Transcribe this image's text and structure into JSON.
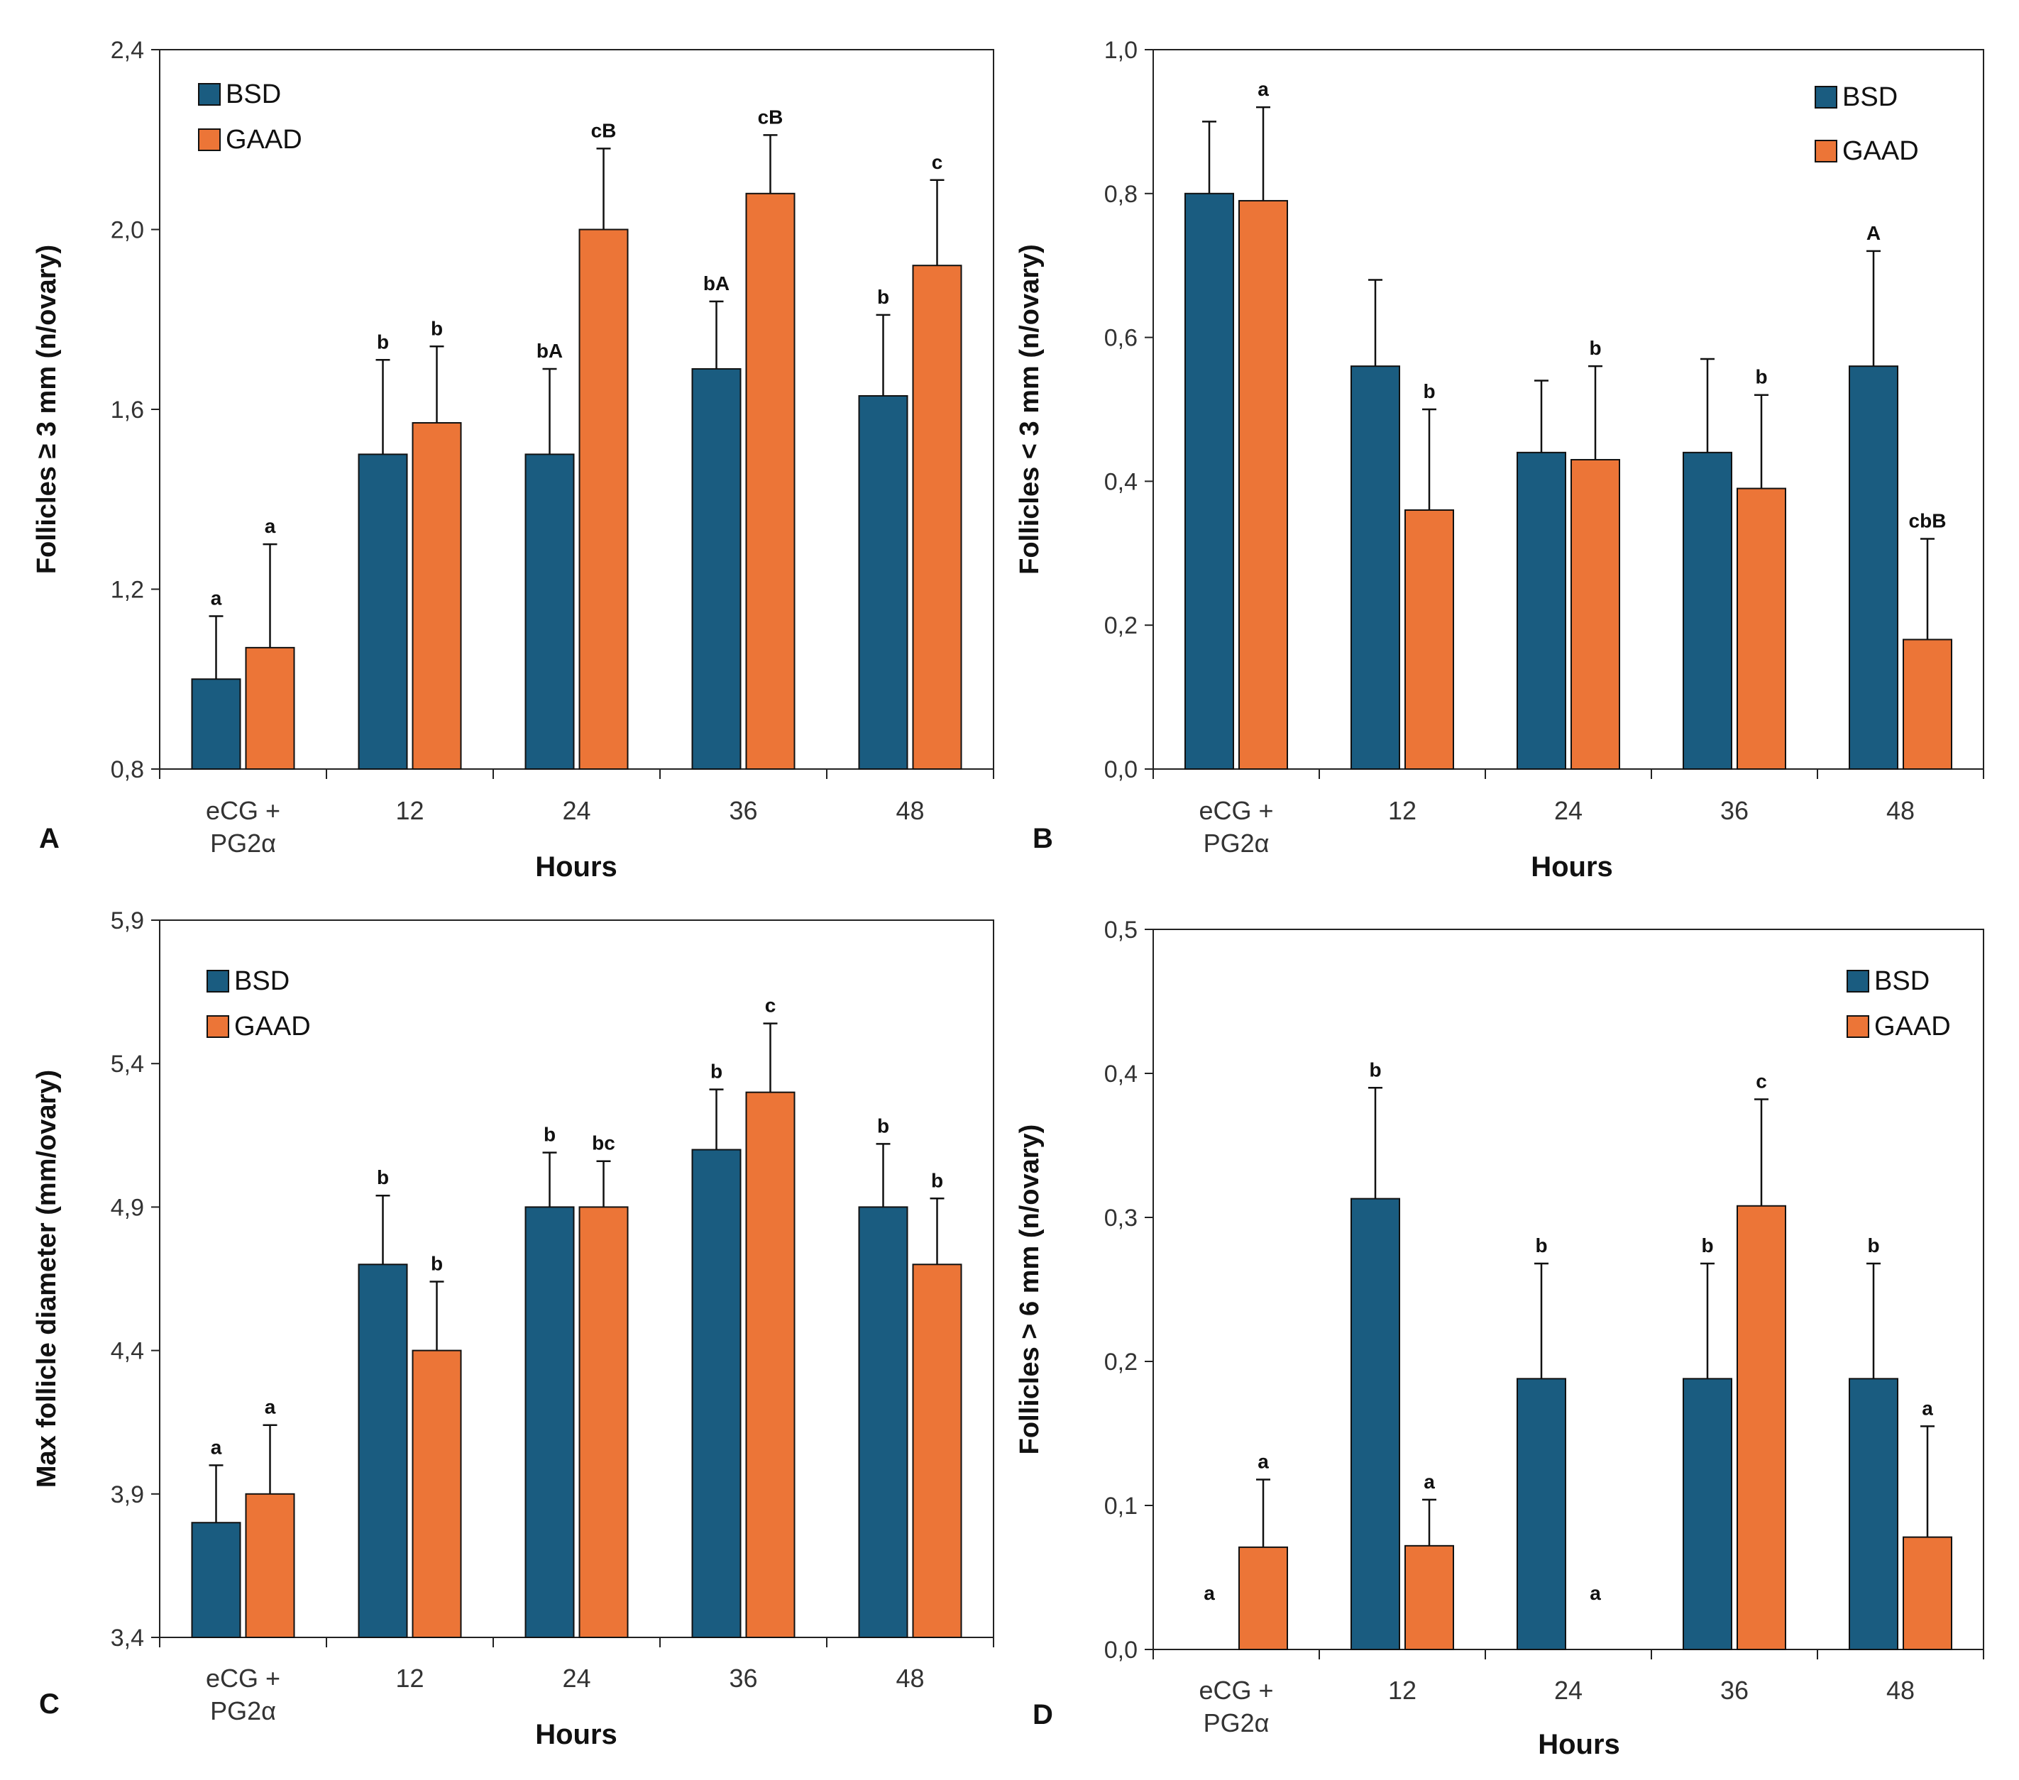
{
  "colors": {
    "bsd": "#1a5c80",
    "gaad": "#ec7537",
    "axis": "#222222",
    "text": "#111111"
  },
  "chart_data": [
    {
      "type": "bar",
      "panel_label": "A",
      "categories": [
        "eCG +|PG2α",
        "12",
        "24",
        "36",
        "48"
      ],
      "xlabel": "Hours",
      "ylabel": "Follicles ≥ 3 mm (n/ovary)",
      "ylim": [
        0.8,
        2.4
      ],
      "yticks": [
        "0,8",
        "1,2",
        "1,6",
        "2,0",
        "2,4"
      ],
      "legend_position": "top-left",
      "series": [
        {
          "name": "BSD",
          "values": [
            1.0,
            1.5,
            1.5,
            1.69,
            1.63
          ],
          "errors": [
            0.14,
            0.21,
            0.19,
            0.15,
            0.18
          ],
          "labels": [
            "a",
            "b",
            "bA",
            "bA",
            "b"
          ]
        },
        {
          "name": "GAAD",
          "values": [
            1.07,
            1.57,
            2.0,
            2.08,
            1.92
          ],
          "errors": [
            0.23,
            0.17,
            0.18,
            0.13,
            0.19
          ],
          "labels": [
            "a",
            "b",
            "cB",
            "cB",
            "c"
          ]
        }
      ]
    },
    {
      "type": "bar",
      "panel_label": "B",
      "categories": [
        "eCG +|PG2α",
        "12",
        "24",
        "36",
        "48"
      ],
      "xlabel": "Hours",
      "ylabel": "Follicles < 3 mm (n/ovary)",
      "ylim": [
        0.0,
        1.0
      ],
      "yticks": [
        "0,0",
        "0,2",
        "0,4",
        "0,6",
        "0,8",
        "1,0"
      ],
      "legend_position": "top-right",
      "series": [
        {
          "name": "BSD",
          "values": [
            0.8,
            0.56,
            0.44,
            0.44,
            0.56
          ],
          "errors": [
            0.1,
            0.12,
            0.1,
            0.13,
            0.16
          ],
          "labels": [
            "",
            "",
            "",
            "",
            "A"
          ]
        },
        {
          "name": "GAAD",
          "values": [
            0.79,
            0.36,
            0.43,
            0.39,
            0.18
          ],
          "errors": [
            0.13,
            0.14,
            0.13,
            0.13,
            0.14
          ],
          "labels": [
            "a",
            "b",
            "b",
            "b",
            "cbB"
          ]
        }
      ]
    },
    {
      "type": "bar",
      "panel_label": "C",
      "categories": [
        "eCG +|PG2α",
        "12",
        "24",
        "36",
        "48"
      ],
      "xlabel": "Hours",
      "ylabel": "Max follicle diameter (mm/ovary)",
      "ylim": [
        3.4,
        5.9
      ],
      "yticks": [
        "3,4",
        "3,9",
        "4,4",
        "4,9",
        "5,4",
        "5,9"
      ],
      "legend_position": "top-left",
      "series": [
        {
          "name": "BSD",
          "values": [
            3.8,
            4.7,
            4.9,
            5.1,
            4.9
          ],
          "errors": [
            0.2,
            0.24,
            0.19,
            0.21,
            0.22
          ],
          "labels": [
            "a",
            "b",
            "b",
            "b",
            "b"
          ]
        },
        {
          "name": "GAAD",
          "values": [
            3.9,
            4.4,
            4.9,
            5.3,
            4.7
          ],
          "errors": [
            0.24,
            0.24,
            0.16,
            0.24,
            0.23
          ],
          "labels": [
            "a",
            "b",
            "bc",
            "c",
            "b"
          ]
        }
      ]
    },
    {
      "type": "bar",
      "panel_label": "D",
      "categories": [
        "eCG +|PG2α",
        "12",
        "24",
        "36",
        "48"
      ],
      "xlabel": "Hours",
      "ylabel": "Follicles > 6 mm (n/ovary)",
      "ylim": [
        0.0,
        0.5
      ],
      "yticks": [
        "0,0",
        "0,1",
        "0,2",
        "0,3",
        "0,4",
        "0,5"
      ],
      "legend_position": "top-right",
      "series": [
        {
          "name": "BSD",
          "values": [
            0.0,
            0.313,
            0.188,
            0.188,
            0.188
          ],
          "errors": [
            0.0,
            0.077,
            0.08,
            0.08,
            0.08
          ],
          "labels": [
            "a",
            "b",
            "b",
            "b",
            "b"
          ]
        },
        {
          "name": "GAAD",
          "values": [
            0.071,
            0.072,
            0.0,
            0.308,
            0.078
          ],
          "errors": [
            0.047,
            0.032,
            0.0,
            0.074,
            0.077
          ],
          "labels": [
            "a",
            "a",
            "a",
            "c",
            "a"
          ]
        }
      ]
    }
  ]
}
